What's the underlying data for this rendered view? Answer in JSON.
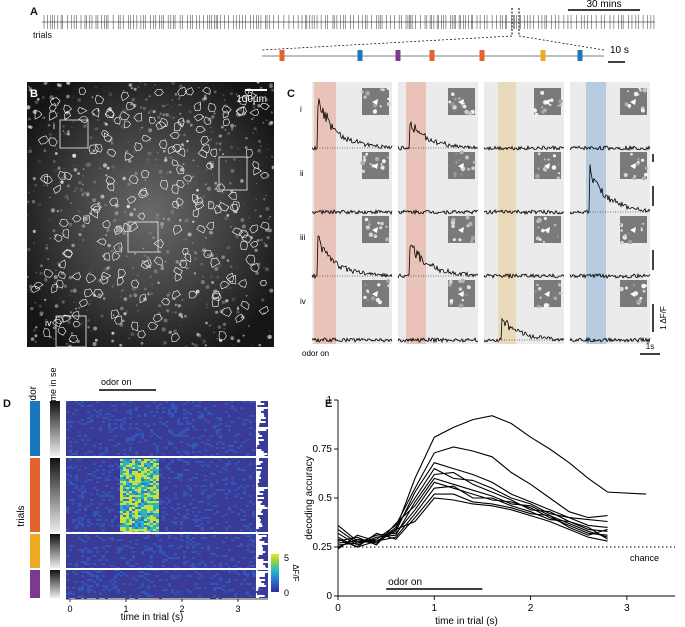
{
  "panel_labels": {
    "a": "A",
    "b": "B",
    "c": "C",
    "d": "D",
    "e": "E"
  },
  "panel_a": {
    "row_label": "trials",
    "scale_top": "30 mins",
    "scale_bottom": "10 s",
    "odor_colors": [
      "#e2632b",
      "#1a77bd",
      "#7b3a92",
      "#e2632b",
      "#e2632b",
      "#eeaa22",
      "#1a77bd"
    ]
  },
  "panel_b": {
    "scale_bar": "100µm",
    "roi_labels": [
      "i",
      "ii",
      "iii",
      "iv"
    ]
  },
  "panel_c": {
    "row_labels": [
      "i",
      "ii",
      "iii",
      "iv"
    ],
    "odor_on": "odor on",
    "time_scale": "1s",
    "df_scale": "1 ΔF/F",
    "window_colors": [
      "#e8b5a8",
      "#e8b5a8",
      "#e8d4a8",
      "#a8c0dc"
    ]
  },
  "panel_d": {
    "odor_header": "odor",
    "time_header": "time in session",
    "ylabel": "trials",
    "xlabel": "time  in trial (s)",
    "odor_on": "odor on",
    "xticks": [
      "0",
      "1",
      "2",
      "3"
    ],
    "colorbar_ticks": [
      "5",
      "0"
    ],
    "colorbar_label": "ΔF/F",
    "group_colors": [
      "#1a77bd",
      "#e2632b",
      "#eeaa22",
      "#7b3a92"
    ]
  },
  "chart_data": {
    "type": "line",
    "title": "",
    "xlabel": "time  in trial (s)",
    "ylabel": "decoding accuracy",
    "xlim": [
      0,
      3.5
    ],
    "ylim": [
      0,
      1
    ],
    "xticks": [
      0,
      1,
      2,
      3
    ],
    "yticks": [
      0,
      0.25,
      0.5,
      0.75,
      1
    ],
    "xtick_labels": [
      "0",
      "1",
      "2",
      "3"
    ],
    "ytick_labels": [
      "0",
      "0.25",
      "0.5",
      "0.75",
      "1"
    ],
    "chance_level": 0.25,
    "chance_label": "chance",
    "odor_on_label": "odor on",
    "odor_on_range": [
      0.5,
      1.5
    ],
    "x": [
      0,
      0.2,
      0.4,
      0.6,
      0.8,
      1.0,
      1.2,
      1.4,
      1.6,
      1.8,
      2.0,
      2.2,
      2.4,
      2.6,
      2.8
    ],
    "series": [
      {
        "values": [
          0.27,
          0.28,
          0.28,
          0.34,
          0.6,
          0.81,
          0.86,
          0.9,
          0.92,
          0.88,
          0.81,
          0.75,
          0.68,
          0.6,
          0.53
        ]
      },
      {
        "values": [
          0.26,
          0.27,
          0.29,
          0.36,
          0.55,
          0.73,
          0.76,
          0.74,
          0.71,
          0.63,
          0.57,
          0.5,
          0.43,
          0.4,
          0.41
        ]
      },
      {
        "values": [
          0.3,
          0.25,
          0.28,
          0.33,
          0.53,
          0.68,
          0.65,
          0.62,
          0.58,
          0.52,
          0.48,
          0.44,
          0.4,
          0.36,
          0.35
        ]
      },
      {
        "values": [
          0.25,
          0.29,
          0.27,
          0.35,
          0.5,
          0.65,
          0.6,
          0.59,
          0.55,
          0.5,
          0.47,
          0.42,
          0.4,
          0.39,
          0.38
        ]
      },
      {
        "values": [
          0.32,
          0.26,
          0.3,
          0.31,
          0.48,
          0.62,
          0.63,
          0.57,
          0.53,
          0.49,
          0.44,
          0.43,
          0.38,
          0.34,
          0.33
        ]
      },
      {
        "values": [
          0.28,
          0.3,
          0.26,
          0.37,
          0.46,
          0.6,
          0.57,
          0.54,
          0.51,
          0.47,
          0.46,
          0.41,
          0.37,
          0.33,
          0.3
        ]
      },
      {
        "values": [
          0.34,
          0.27,
          0.31,
          0.32,
          0.44,
          0.58,
          0.55,
          0.52,
          0.49,
          0.48,
          0.45,
          0.4,
          0.36,
          0.32,
          0.31
        ]
      },
      {
        "values": [
          0.24,
          0.31,
          0.28,
          0.3,
          0.42,
          0.55,
          0.56,
          0.5,
          0.5,
          0.46,
          0.43,
          0.39,
          0.38,
          0.35,
          0.29
        ]
      },
      {
        "values": [
          0.29,
          0.25,
          0.32,
          0.29,
          0.4,
          0.52,
          0.52,
          0.48,
          0.47,
          0.45,
          0.42,
          0.41,
          0.35,
          0.31,
          0.34
        ]
      },
      {
        "values": [
          0.36,
          0.28,
          0.27,
          0.34,
          0.38,
          0.5,
          0.49,
          0.47,
          0.46,
          0.44,
          0.41,
          0.38,
          0.34,
          0.3,
          0.28
        ]
      }
    ]
  }
}
